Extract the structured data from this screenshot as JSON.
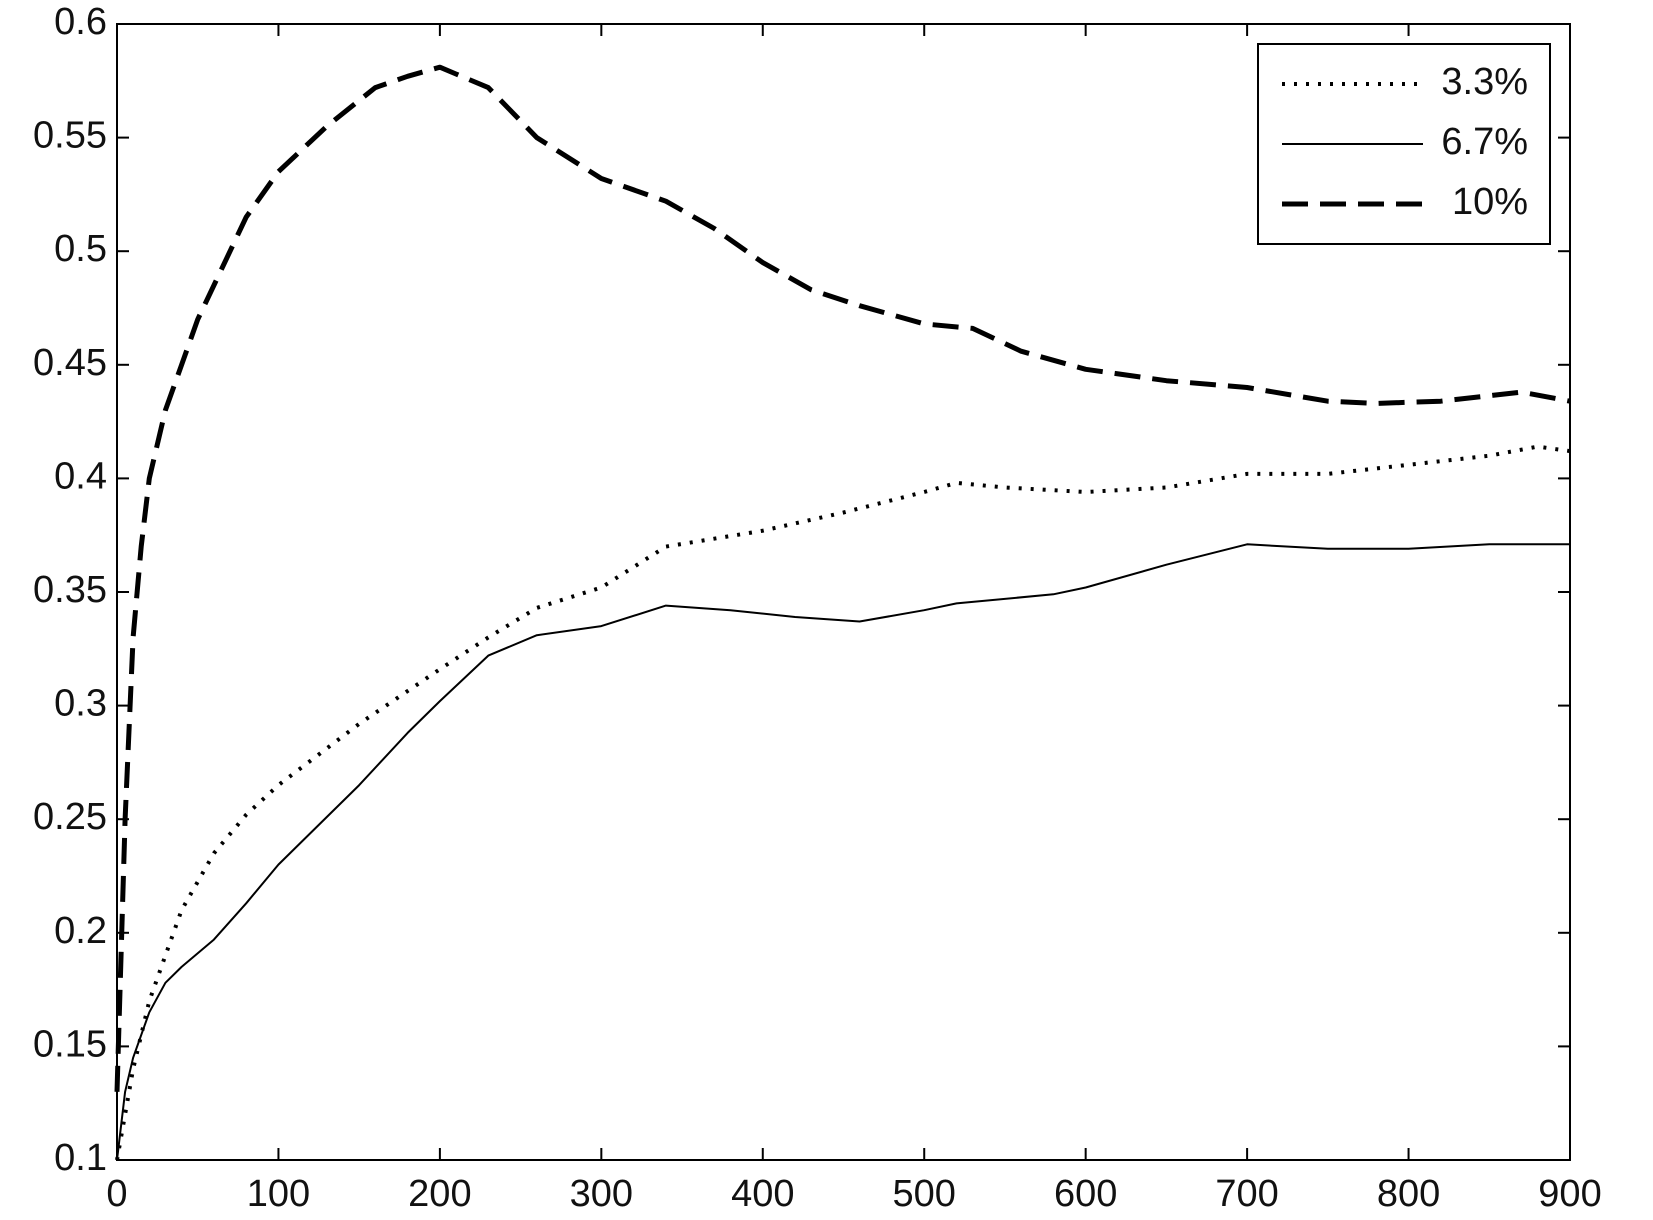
{
  "chart_data": {
    "type": "line",
    "xlim": [
      0,
      900
    ],
    "xticks": [
      0,
      100,
      200,
      300,
      400,
      500,
      600,
      700,
      800,
      900
    ],
    "ylim": [
      0.1,
      0.6
    ],
    "yticks": [
      0.1,
      0.15,
      0.2,
      0.25,
      0.3,
      0.35,
      0.4,
      0.45,
      0.5,
      0.55,
      0.6
    ],
    "grid": false,
    "legend": "upper right",
    "series": [
      {
        "name": "3.3%",
        "color": "#000000",
        "style": "dotted",
        "x": [
          0,
          10,
          20,
          30,
          40,
          60,
          80,
          100,
          150,
          200,
          230,
          260,
          300,
          340,
          400,
          450,
          500,
          520,
          550,
          600,
          650,
          700,
          750,
          800,
          850,
          880,
          900
        ],
        "values": [
          0.1,
          0.14,
          0.17,
          0.19,
          0.21,
          0.235,
          0.252,
          0.265,
          0.292,
          0.316,
          0.33,
          0.343,
          0.352,
          0.37,
          0.377,
          0.385,
          0.394,
          0.398,
          0.396,
          0.394,
          0.396,
          0.402,
          0.402,
          0.406,
          0.41,
          0.414,
          0.412
        ]
      },
      {
        "name": "6.7%",
        "color": "#000000",
        "style": "solid",
        "x": [
          0,
          5,
          10,
          20,
          30,
          40,
          60,
          80,
          100,
          150,
          180,
          200,
          230,
          260,
          300,
          340,
          380,
          420,
          460,
          500,
          520,
          580,
          600,
          650,
          700,
          750,
          800,
          850,
          900
        ],
        "values": [
          0.1,
          0.13,
          0.145,
          0.165,
          0.178,
          0.185,
          0.197,
          0.213,
          0.23,
          0.265,
          0.288,
          0.302,
          0.322,
          0.331,
          0.335,
          0.344,
          0.342,
          0.339,
          0.337,
          0.342,
          0.345,
          0.349,
          0.352,
          0.362,
          0.371,
          0.369,
          0.369,
          0.371,
          0.371
        ]
      },
      {
        "name": "10%",
        "color": "#000000",
        "style": "dashed",
        "x": [
          0,
          5,
          10,
          15,
          20,
          30,
          40,
          50,
          60,
          80,
          100,
          130,
          160,
          180,
          200,
          210,
          230,
          260,
          300,
          340,
          370,
          400,
          430,
          460,
          500,
          530,
          560,
          600,
          650,
          700,
          750,
          780,
          820,
          870,
          900
        ],
        "values": [
          0.13,
          0.25,
          0.33,
          0.37,
          0.4,
          0.43,
          0.45,
          0.47,
          0.485,
          0.515,
          0.535,
          0.555,
          0.572,
          0.577,
          0.581,
          0.578,
          0.572,
          0.55,
          0.532,
          0.522,
          0.51,
          0.495,
          0.483,
          0.476,
          0.468,
          0.466,
          0.456,
          0.448,
          0.443,
          0.44,
          0.434,
          0.433,
          0.434,
          0.438,
          0.434
        ]
      }
    ]
  }
}
